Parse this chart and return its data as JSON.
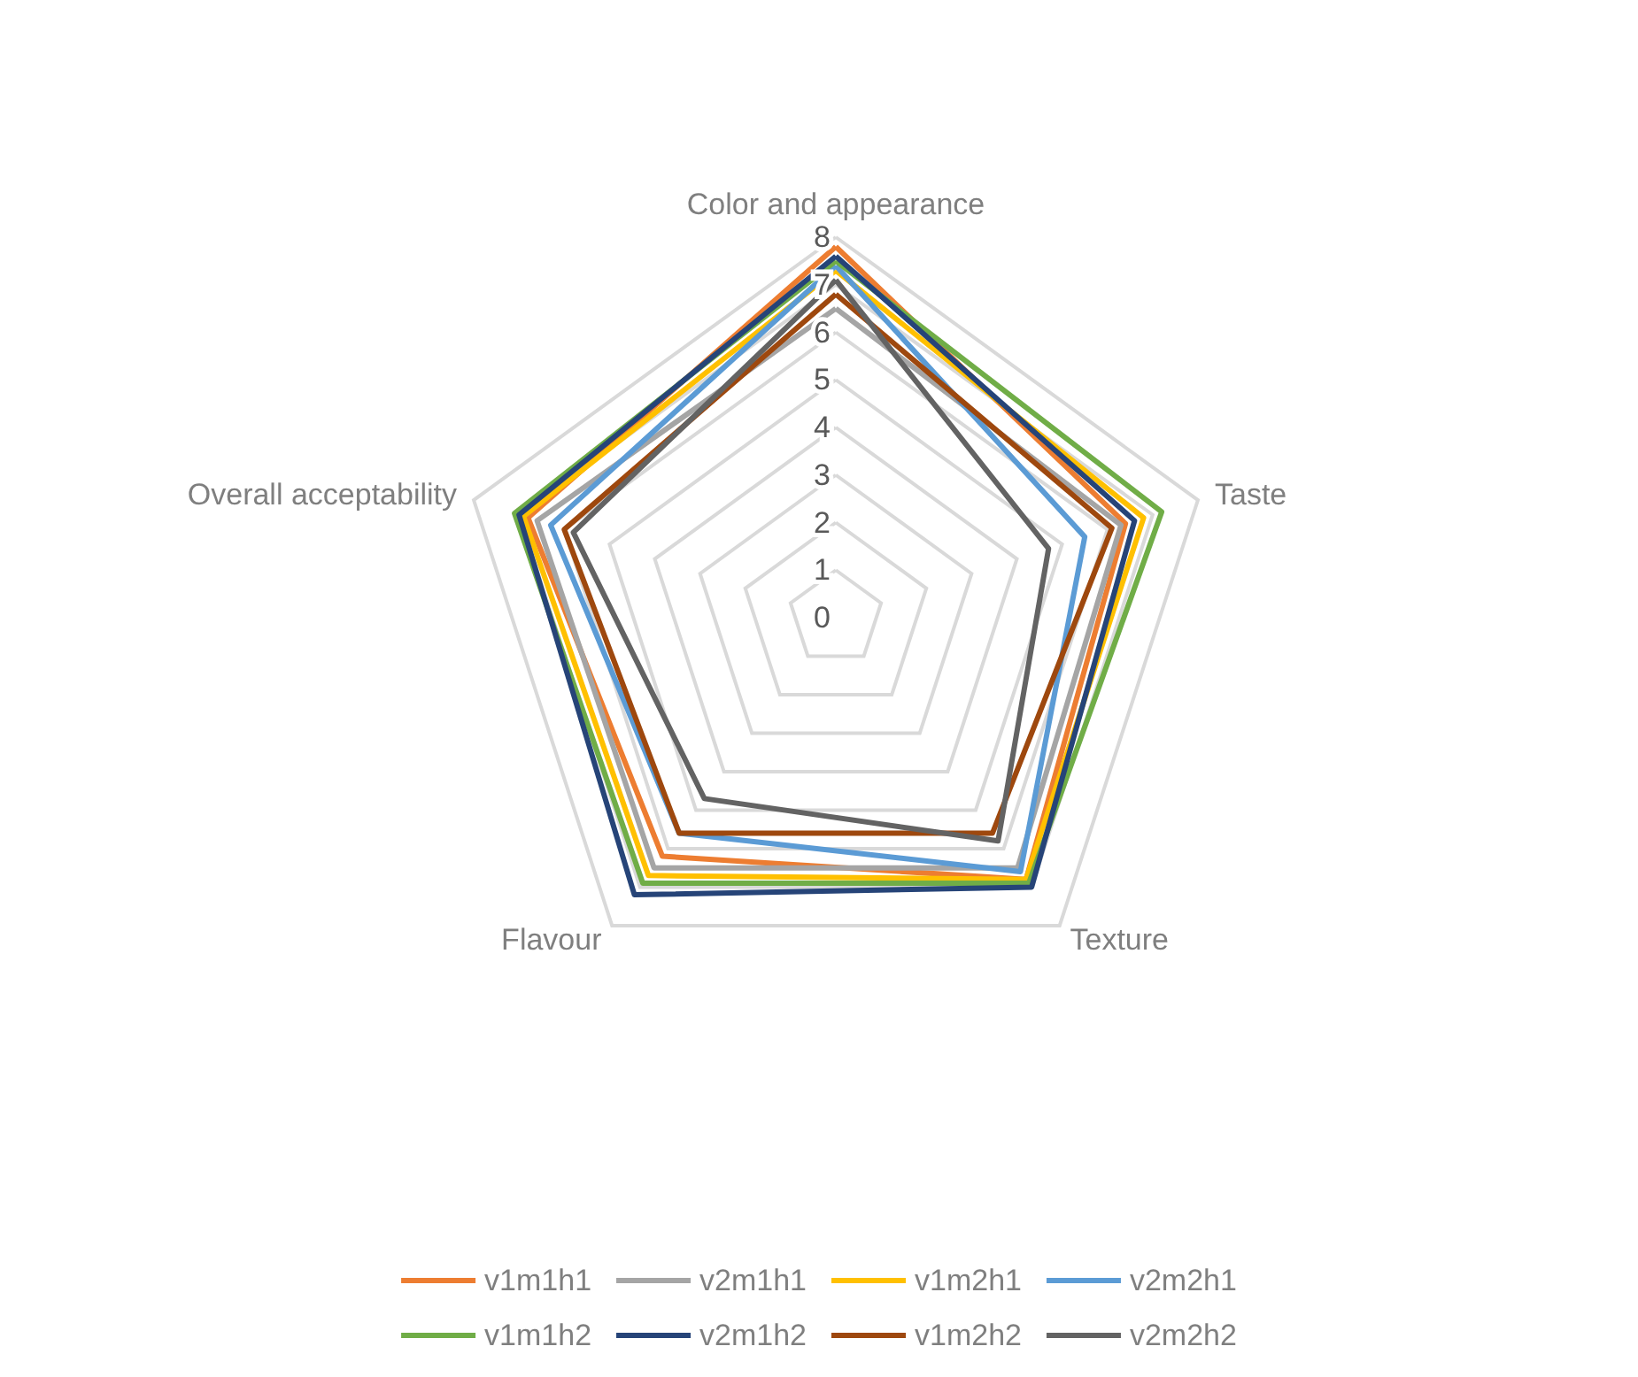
{
  "chart_data": {
    "type": "radar",
    "categories": [
      "Color and appearance",
      "Taste",
      "Texture",
      "Flavour",
      "Overall acceptability"
    ],
    "ylim": [
      0,
      8
    ],
    "yticks": [
      0,
      1,
      2,
      3,
      4,
      5,
      6,
      7,
      8
    ],
    "grid": true,
    "legend": "bottom",
    "marker": "none",
    "series": [
      {
        "name": "v1m1h1",
        "color": "#ed7d31",
        "values": [
          7.8,
          6.4,
          6.8,
          6.2,
          6.8
        ]
      },
      {
        "name": "v2m1h1",
        "color": "#a5a5a5",
        "values": [
          6.5,
          6.3,
          6.5,
          6.5,
          6.6
        ]
      },
      {
        "name": "v1m2h1",
        "color": "#ffc000",
        "values": [
          7.3,
          6.8,
          6.8,
          6.7,
          6.9
        ]
      },
      {
        "name": "v2m2h1",
        "color": "#5b9bd5",
        "values": [
          7.4,
          5.5,
          6.6,
          5.6,
          6.3
        ]
      },
      {
        "name": "v1m1h2",
        "color": "#70ad47",
        "values": [
          7.5,
          7.2,
          6.9,
          6.9,
          7.1
        ]
      },
      {
        "name": "v2m1h2",
        "color": "#264478",
        "values": [
          7.6,
          6.6,
          7.0,
          7.2,
          7.0
        ]
      },
      {
        "name": "v1m2h2",
        "color": "#9e480e",
        "values": [
          6.8,
          6.1,
          5.6,
          5.6,
          6.0
        ]
      },
      {
        "name": "v2m2h2",
        "color": "#636363",
        "values": [
          7.1,
          4.7,
          5.8,
          4.7,
          5.8
        ]
      }
    ]
  }
}
